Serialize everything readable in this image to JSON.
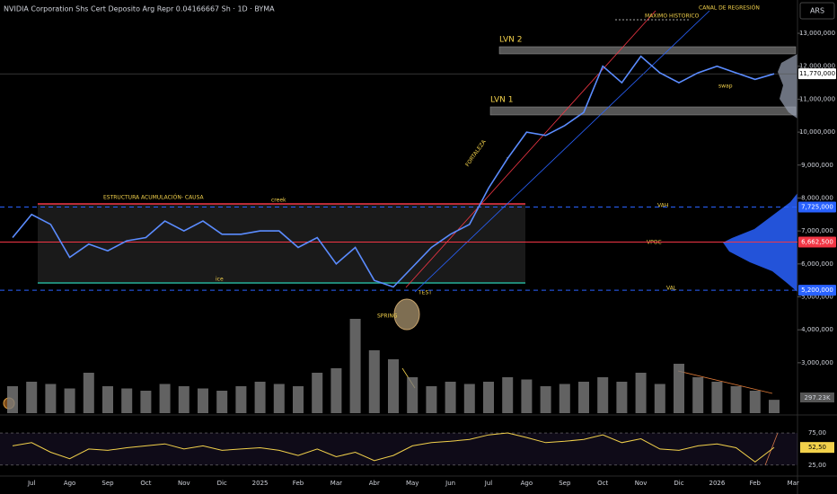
{
  "chart_data": {
    "type": "line",
    "title": "NVIDIA Corporation Shs Cert Deposito Arg Repr 0.04166667 Sh · 1D · BYMA",
    "currency_label": "ARS",
    "categories": [
      null,
      "Jul",
      null,
      "Ago",
      null,
      "Sep",
      null,
      "Oct",
      null,
      "Nov",
      null,
      "Dic",
      null,
      "2025",
      null,
      "Feb",
      null,
      "Mar",
      null,
      "Abr",
      null,
      "May",
      null,
      "Jun",
      null,
      "Jul",
      null,
      "Ago",
      null,
      "Sep",
      null,
      "Oct",
      null,
      "Nov",
      null,
      "Dic",
      null,
      "2026",
      null,
      "Feb",
      null,
      "Mar"
    ],
    "series": [
      {
        "color": "#5b8cff",
        "values": [
          6800000,
          7500000,
          7200000,
          6200000,
          6600000,
          6400000,
          6700000,
          6800000,
          7300000,
          7000000,
          7300000,
          6900000,
          6900000,
          7000000,
          7000000,
          6500000,
          6800000,
          6000000,
          6500000,
          5500000,
          5300000,
          5900000,
          6500000,
          6900000,
          7200000,
          8300000,
          9200000,
          10000000,
          9900000,
          10200000,
          10600000,
          12000000,
          11500000,
          12300000,
          11800000,
          11500000,
          11800000,
          12000000,
          11800000,
          11600000,
          11770000,
          null
        ]
      }
    ],
    "ylim": [
      1470000,
      14010000
    ],
    "yticks": [
      {
        "value": 3000000,
        "label": "3,000,000"
      },
      {
        "value": 4000000,
        "label": "4,000,000"
      },
      {
        "value": 5000000,
        "label": "5,000,000"
      },
      {
        "value": 6000000,
        "label": "6,000,000"
      },
      {
        "value": 7000000,
        "label": "7,000,000"
      },
      {
        "value": 8000000,
        "label": "8,000,000"
      },
      {
        "value": 9000000,
        "label": "9,000,000"
      },
      {
        "value": 10000000,
        "label": "10,000,000"
      },
      {
        "value": 11000000,
        "label": "11,000,000"
      },
      {
        "value": 12000000,
        "label": "12,000,000"
      },
      {
        "value": 13000000,
        "label": "13,000,000"
      }
    ],
    "price_labels": [
      {
        "value": 11770000,
        "label": "11,770,000",
        "color": "#ffffff"
      },
      {
        "value": 7725000,
        "label": "7,725,000",
        "color": "#2962ff"
      },
      {
        "value": 6662500,
        "label": "6,662,500",
        "color": "#f23645"
      },
      {
        "value": 5200000,
        "label": "5,200,000",
        "color": "#2962ff"
      }
    ],
    "volume": {
      "type": "bar",
      "color": "#7a7a7a",
      "values": [
        600,
        700,
        650,
        550,
        900,
        600,
        550,
        500,
        650,
        600,
        550,
        500,
        600,
        700,
        650,
        600,
        900,
        1000,
        2100,
        1400,
        1200,
        800,
        600,
        700,
        650,
        700,
        800,
        750,
        600,
        650,
        700,
        800,
        700,
        900,
        650,
        1100,
        800,
        700,
        600,
        500,
        297.23,
        null
      ],
      "ylim": [
        0,
        2400
      ],
      "last_label": {
        "value": 297.23,
        "label": "297.23K"
      }
    },
    "rsi": {
      "type": "line",
      "color": "#f2d14b",
      "values": [
        55,
        60,
        45,
        35,
        50,
        48,
        52,
        55,
        58,
        50,
        55,
        48,
        50,
        52,
        48,
        40,
        50,
        38,
        45,
        32,
        40,
        55,
        60,
        62,
        65,
        72,
        75,
        68,
        60,
        62,
        65,
        72,
        60,
        66,
        50,
        48,
        55,
        58,
        52,
        30,
        52.5,
        null
      ],
      "ylim": [
        8,
        103
      ],
      "yticks": [
        {
          "value": 75,
          "label": "75,00"
        },
        {
          "value": 25,
          "label": "25,00"
        }
      ],
      "last_label": {
        "value": 52.5,
        "label": "52,50"
      }
    },
    "annotations": {
      "structure": "ESTRUCTURA ACUMULACIÓN- CAUSA",
      "creek": "creek",
      "ice": "ice",
      "spring": "SPRING",
      "test": "TEST",
      "strength": "FORTALEZA",
      "lvn1": "LVN  1",
      "lvn2": "LVN  2",
      "ath": "MAXIMO HISTORICO",
      "channel": "CANAL DE REGRESIÓN",
      "vah": "VAH",
      "vpoc": "VPOC",
      "val": "VAL",
      "swap": "swap"
    }
  }
}
